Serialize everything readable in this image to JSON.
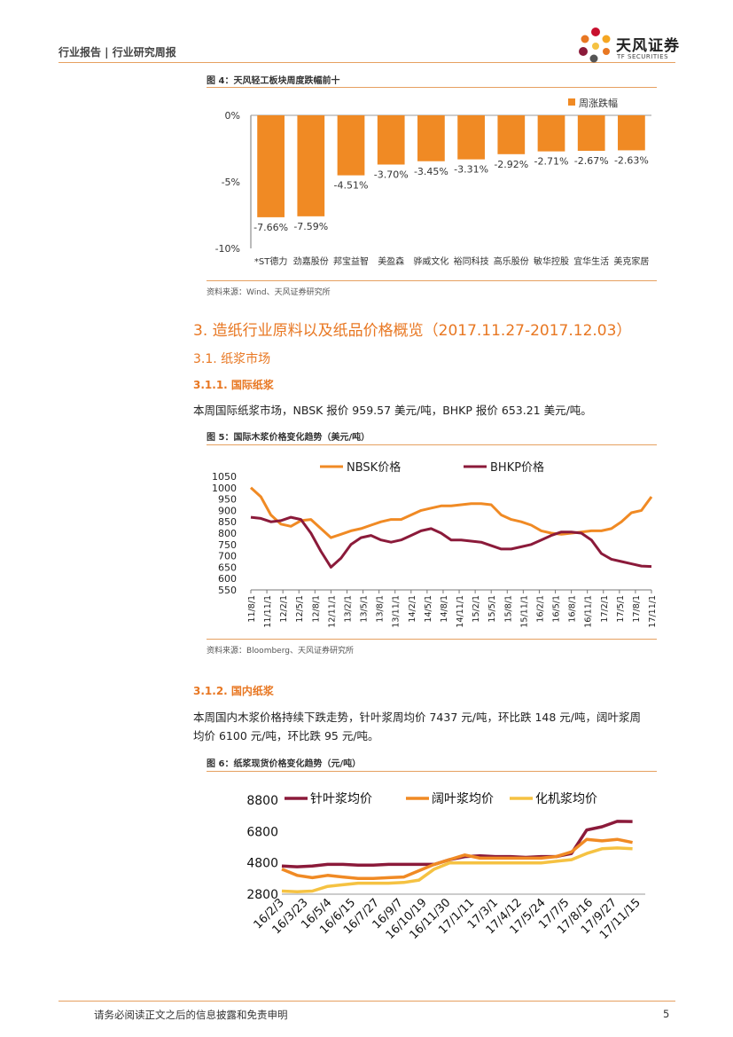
{
  "header": {
    "breadcrumb": "行业报告 | 行业研究周报",
    "logo_name": "天风证券",
    "logo_en": "TF SECURITIES"
  },
  "fig4": {
    "title": "图 4：天风轻工板块周度跌幅前十",
    "source": "资料来源：Wind、天风证券研究所",
    "chart_data": {
      "type": "bar",
      "title": "",
      "legend": "周涨跌幅",
      "categories": [
        "*ST德力",
        "劲嘉股份",
        "邦宝益智",
        "美盈森",
        "骅威文化",
        "裕同科技",
        "高乐股份",
        "敏华控股",
        "宜华生活",
        "美克家居"
      ],
      "values": [
        -7.66,
        -7.59,
        -4.51,
        -3.7,
        -3.45,
        -3.31,
        -2.92,
        -2.71,
        -2.67,
        -2.63
      ],
      "labels": [
        "-7.66%",
        "-7.59%",
        "-4.51%",
        "-3.70%",
        "-3.45%",
        "-3.31%",
        "-2.92%",
        "-2.71%",
        "-2.67%",
        "-2.63%"
      ],
      "yticks": [
        "0%",
        "-5%",
        "-10%"
      ],
      "ylim": [
        -10,
        0
      ],
      "color": "#f08a24"
    }
  },
  "section3": {
    "title": "3. 造纸行业原料以及纸品价格概览（2017.11.27-2017.12.03）",
    "sub1": "3.1. 纸浆市场",
    "sub11": "3.1.1. 国际纸浆",
    "para1": "本周国际纸浆市场，NBSK 报价 959.57 美元/吨，BHKP 报价 653.21 美元/吨。",
    "sub12": "3.1.2. 国内纸浆",
    "para2a": "本周国内木浆价格持续下跌走势，针叶浆周均价 7437 元/吨，环比跌 148 元/吨，阔叶浆周",
    "para2b": "均价 6100 元/吨，环比跌 95 元/吨。"
  },
  "fig5": {
    "title": "图 5：国际木浆价格变化趋势（美元/吨）",
    "source": "资料来源：Bloomberg、天风证券研究所",
    "chart_data": {
      "type": "line",
      "ylim": [
        550,
        1050
      ],
      "yticks": [
        "1050",
        "1000",
        "950",
        "900",
        "850",
        "800",
        "750",
        "700",
        "650",
        "600",
        "550"
      ],
      "xticks": [
        "11/8/1",
        "11/11/1",
        "12/2/1",
        "12/5/1",
        "12/8/1",
        "12/11/1",
        "13/2/1",
        "13/5/1",
        "13/8/1",
        "13/11/1",
        "14/2/1",
        "14/5/1",
        "14/8/1",
        "14/11/1",
        "15/2/1",
        "15/5/1",
        "15/8/1",
        "15/11/1",
        "16/2/1",
        "16/5/1",
        "16/8/1",
        "16/11/1",
        "17/2/1",
        "17/5/1",
        "17/8/1",
        "17/11/1"
      ],
      "series": [
        {
          "name": "NBSK价格",
          "color": "#f08a24",
          "values": [
            1000,
            960,
            880,
            840,
            830,
            855,
            860,
            820,
            780,
            795,
            810,
            820,
            835,
            850,
            860,
            860,
            880,
            900,
            910,
            920,
            920,
            925,
            930,
            930,
            925,
            880,
            860,
            850,
            835,
            810,
            800,
            795,
            800,
            805,
            810,
            810,
            820,
            850,
            890,
            900,
            960
          ]
        },
        {
          "name": "BHKP价格",
          "color": "#8b1a3a",
          "values": [
            870,
            865,
            850,
            855,
            870,
            860,
            800,
            720,
            650,
            690,
            750,
            780,
            790,
            770,
            760,
            770,
            790,
            810,
            820,
            800,
            770,
            770,
            765,
            760,
            745,
            730,
            730,
            740,
            750,
            770,
            790,
            805,
            805,
            800,
            770,
            710,
            685,
            675,
            665,
            655,
            653
          ]
        }
      ]
    }
  },
  "fig6": {
    "title": "图 6：纸浆现货价格变化趋势（元/吨）",
    "chart_data": {
      "type": "line",
      "ylim": [
        2800,
        8800
      ],
      "yticks": [
        "8800",
        "6800",
        "4800",
        "2800"
      ],
      "xticks": [
        "16/2/3",
        "16/3/23",
        "16/5/4",
        "16/6/15",
        "16/7/27",
        "16/9/7",
        "16/10/19",
        "16/11/30",
        "17/1/11",
        "17/3/1",
        "17/4/12",
        "17/5/24",
        "17/7/5",
        "17/8/16",
        "17/9/27",
        "17/11/15"
      ],
      "series": [
        {
          "name": "针叶浆均价",
          "color": "#8b1a3a",
          "values": [
            4600,
            4550,
            4600,
            4700,
            4700,
            4650,
            4650,
            4700,
            4700,
            4700,
            4700,
            5000,
            5200,
            5250,
            5200,
            5200,
            5150,
            5200,
            5200,
            5400,
            6900,
            7100,
            7450,
            7437
          ]
        },
        {
          "name": "阔叶浆均价",
          "color": "#f08a24",
          "values": [
            4400,
            4000,
            3850,
            4000,
            3900,
            3800,
            3800,
            3850,
            3900,
            4300,
            4700,
            5000,
            5300,
            5100,
            5100,
            5100,
            5100,
            5100,
            5200,
            5500,
            6300,
            6200,
            6300,
            6100
          ]
        },
        {
          "name": "化机浆均价",
          "color": "#f5c242",
          "values": [
            3000,
            2950,
            3000,
            3300,
            3400,
            3500,
            3500,
            3500,
            3550,
            3700,
            4400,
            4800,
            4800,
            4800,
            4800,
            4800,
            4800,
            4800,
            4900,
            5000,
            5400,
            5700,
            5750,
            5700
          ]
        }
      ]
    }
  },
  "footer": {
    "disclaimer": "请务必阅读正文之后的信息披露和免责申明",
    "page": "5"
  }
}
